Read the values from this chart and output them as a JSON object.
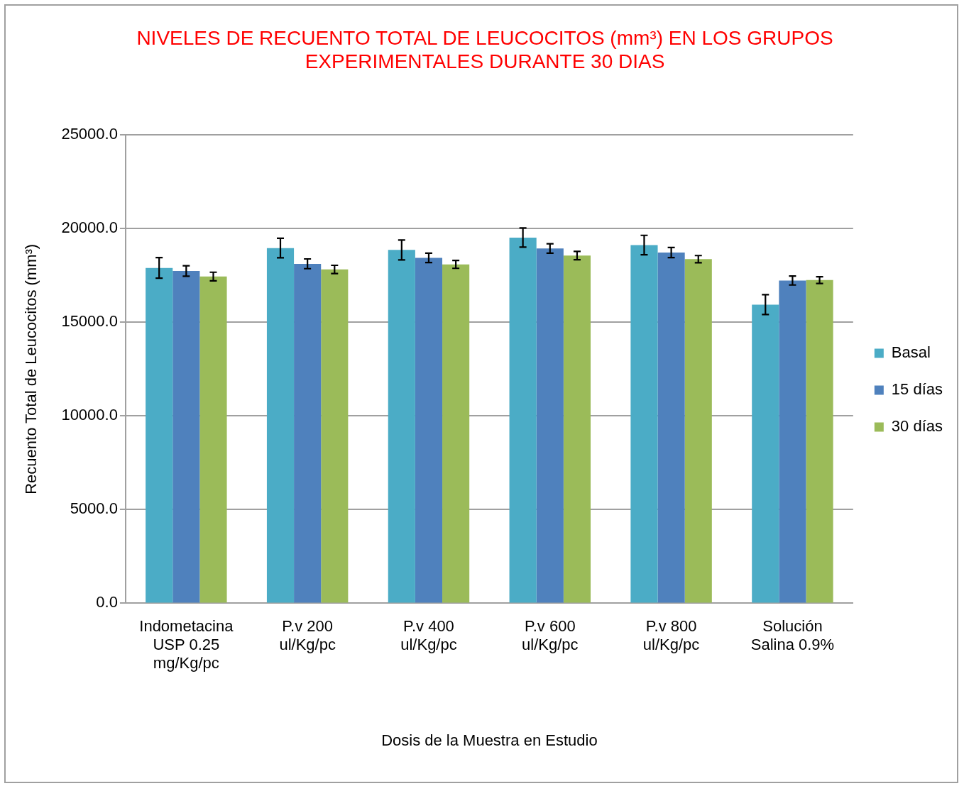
{
  "chart_data": {
    "type": "bar",
    "title": "NIVELES DE RECUENTO TOTAL DE LEUCOCITOS (mm³) EN LOS GRUPOS EXPERIMENTALES DURANTE 30 DIAS",
    "xlabel": "Dosis de la Muestra en Estudio",
    "ylabel": "Recuento Total de Leucocitos (mm³)",
    "categories": [
      "Indometacina USP 0.25 mg/Kg/pc",
      "P.v 200 ul/Kg/pc",
      "P.v 400 ul/Kg/pc",
      "P.v 600 ul/Kg/pc",
      "P.v 800 ul/Kg/pc",
      "Solución Salina 0.9%"
    ],
    "series": [
      {
        "name": "Basal",
        "color": "#4bacc6",
        "values": [
          17900,
          18960,
          18860,
          19520,
          19120,
          15940
        ],
        "errors": [
          550,
          520,
          530,
          510,
          520,
          530
        ]
      },
      {
        "name": "15 días",
        "color": "#4f81bd",
        "values": [
          17740,
          18120,
          18440,
          18940,
          18720,
          17230
        ],
        "errors": [
          280,
          260,
          250,
          250,
          270,
          240
        ]
      },
      {
        "name": "30 días",
        "color": "#9bbb59",
        "values": [
          17440,
          17820,
          18090,
          18560,
          18370,
          17250
        ],
        "errors": [
          230,
          220,
          210,
          220,
          190,
          180
        ]
      }
    ],
    "ylim": [
      0,
      25000
    ],
    "yticks": [
      {
        "value": 0,
        "label": "0.0"
      },
      {
        "value": 5000,
        "label": "5000.0"
      },
      {
        "value": 10000,
        "label": "10000.0"
      },
      {
        "value": 15000,
        "label": "15000.0"
      },
      {
        "value": 20000,
        "label": "20000.0"
      },
      {
        "value": 25000,
        "label": "25000.0"
      }
    ],
    "grid": "y",
    "legend": "right"
  }
}
